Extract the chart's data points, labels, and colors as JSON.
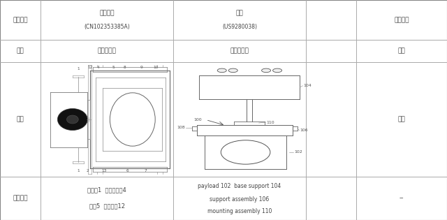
{
  "bg_color": "#ffffff",
  "border_color": "#aaaaaa",
  "text_color": "#444444",
  "header_row1": {
    "col0": "诉争专利",
    "col1_title": "对比文件",
    "col1_sub": "(CN102353385A)",
    "col2_title": "本案",
    "col2_sub": "(US9280038)",
    "col3": "比对结果"
  },
  "header_row2": {
    "col0": "领域",
    "col1": "无人机云台",
    "col2": "无人机云台",
    "col3": "相同"
  },
  "figure_row": {
    "col0": "附图",
    "col3": "相近"
  },
  "element_row": {
    "col0": "元件名称",
    "col1_line1": "摊像机1  摊像机机杁4",
    "col1_line2": "合带5  摊像机朴12",
    "col2_line1": "payload 102  base support 104",
    "col2_line2": "support assembly 106",
    "col2_line3": "mounting assembly 110",
    "col3": "--"
  },
  "cols": [
    0,
    58,
    248,
    438,
    510,
    640
  ],
  "rows": [
    0,
    57,
    89,
    253,
    315
  ]
}
